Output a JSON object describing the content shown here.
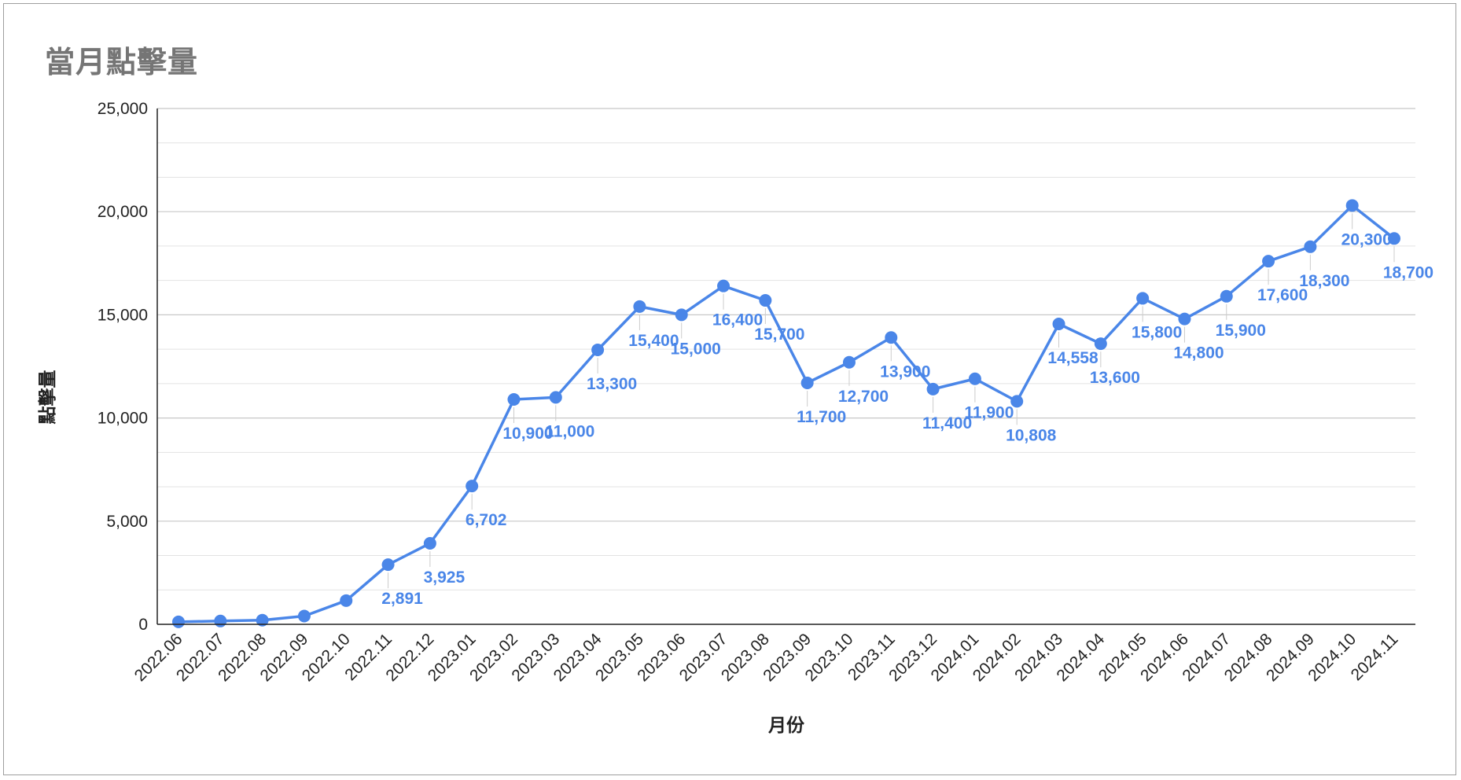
{
  "chart_data": {
    "type": "line",
    "title": "當月點擊量",
    "xlabel": "月份",
    "ylabel": "點擊量",
    "ylim": [
      0,
      25000
    ],
    "y_ticks": [
      "0",
      "5,000",
      "10,000",
      "15,000",
      "20,000",
      "25,000"
    ],
    "grid": true,
    "legend": "none",
    "color": "#4a86e8",
    "categories": [
      "2022.06",
      "2022.07",
      "2022.08",
      "2022.09",
      "2022.10",
      "2022.11",
      "2022.12",
      "2023.01",
      "2023.02",
      "2023.03",
      "2023.04",
      "2023.05",
      "2023.06",
      "2023.07",
      "2023.08",
      "2023.09",
      "2023.10",
      "2023.11",
      "2023.12",
      "2024.01",
      "2024.02",
      "2024.03",
      "2024.04",
      "2024.05",
      "2024.06",
      "2024.07",
      "2024.08",
      "2024.09",
      "2024.10",
      "2024.11"
    ],
    "values": [
      120,
      160,
      200,
      400,
      1150,
      2891,
      3925,
      6702,
      10900,
      11000,
      13300,
      15400,
      15000,
      16400,
      15700,
      11700,
      12700,
      13900,
      11400,
      11900,
      10808,
      14558,
      13600,
      15800,
      14800,
      15900,
      17600,
      18300,
      20300,
      18700
    ],
    "data_labels": [
      "",
      "",
      "",
      "",
      "",
      "2,891",
      "3,925",
      "6,702",
      "10,900",
      "11,000",
      "13,300",
      "15,400",
      "15,000",
      "16,400",
      "15,700",
      "11,700",
      "12,700",
      "13,900",
      "11,400",
      "11,900",
      "10,808",
      "14,558",
      "13,600",
      "15,800",
      "14,800",
      "15,900",
      "17,600",
      "18,300",
      "20,300",
      "18,700"
    ]
  }
}
